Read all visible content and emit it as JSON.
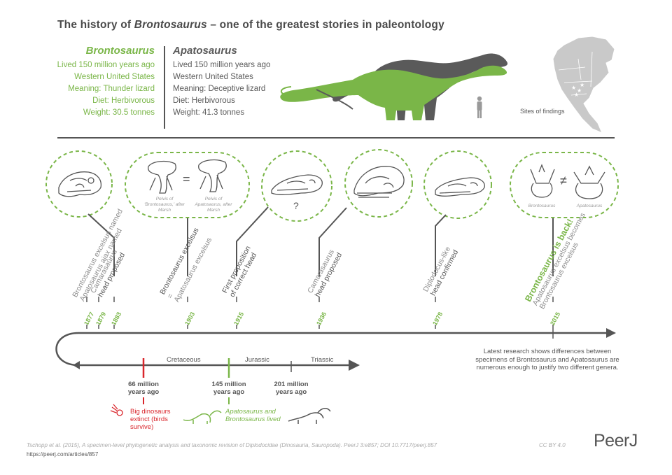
{
  "title": {
    "prefix": "The history of ",
    "italic": "Brontosaurus",
    "suffix": " – one of the greatest stories in paleontology"
  },
  "brontosaurus": {
    "name": "Brontosaurus",
    "lines": [
      "Lived 150 million years ago",
      "Western United States",
      "Meaning: Thunder lizard",
      "Diet: Herbivorous",
      "Weight: 30.5 tonnes"
    ]
  },
  "apatosaurus": {
    "name": "Apatosaurus",
    "lines": [
      "Lived 150 million years ago",
      "Western United States",
      "Meaning: Deceptive lizard",
      "Diet: Herbivorous",
      "Weight: 41.3 tonnes"
    ]
  },
  "map": {
    "label": "Sites of findings"
  },
  "bubbles": {
    "pelvis_left": "Pelvis of 'Brontosaurus,' after Marsh",
    "pelvis_right": "Pelvis of Apatosaurus, after Marsh",
    "equals": "=",
    "question": "?",
    "not_equal": "≠",
    "vert_left": "Brontosaurus",
    "vert_right": "Apatosaurus"
  },
  "events": {
    "e1877_line1": "Brontosaurus excelsus named",
    "e1877_line2": "Apatosaurus ajax named",
    "e1879_line1": "Camarasaurus",
    "e1879_line2": "head proposed",
    "e1903_line1": "Brontosaurus excelsus",
    "e1903_line2": "=",
    "e1903_line3": "Apatosaurus excelsus",
    "e1915_line1": "First proposition",
    "e1915_line2": "of correct head",
    "e1936_line1": "Camarasaurus",
    "e1936_line2": "head proposed",
    "e1978_line1": "Diplodocus-like",
    "e1978_line2": "head confirmed",
    "e2015_line1": "Brontosaurus is back!",
    "e2015_line2": "Apatosaurus excelsus becomes",
    "e2015_line3": "Brontosaurus excelsus"
  },
  "years": [
    "1877",
    "1879",
    "1883",
    "1903",
    "1915",
    "1936",
    "1978",
    "2015"
  ],
  "periods": {
    "cretaceous": "Cretaceous",
    "jurassic": "Jurassic",
    "triassic": "Triassic"
  },
  "mya": {
    "m66": [
      "66 million",
      "years ago"
    ],
    "m145": [
      "145 million",
      "years ago"
    ],
    "m201": [
      "201 million",
      "years ago"
    ]
  },
  "notes": {
    "extinct": [
      "Big dinosaurs",
      "extinct (birds",
      "survive)"
    ],
    "lived": [
      "Apatosaurus and",
      "Brontosaurus lived"
    ]
  },
  "research": "Latest research shows differences between specimens of Brontosaurus and Apatosaurus are numerous enough to justify two different genera.",
  "citation": "Tschopp et al. (2015), A specimen-level phylogenetic analysis and taxonomic revision of Diplodocidae (Dinosauria, Sauropoda). PeerJ 3:e857; DOI 10.7717/peerj.857",
  "url": "https://peerj.com/articles/857",
  "license": "CC BY 4.0",
  "logo": "PeerJ",
  "colors": {
    "green": "#7ab648",
    "dark": "#555555",
    "red": "#d9262c",
    "light": "#aaaaaa"
  }
}
